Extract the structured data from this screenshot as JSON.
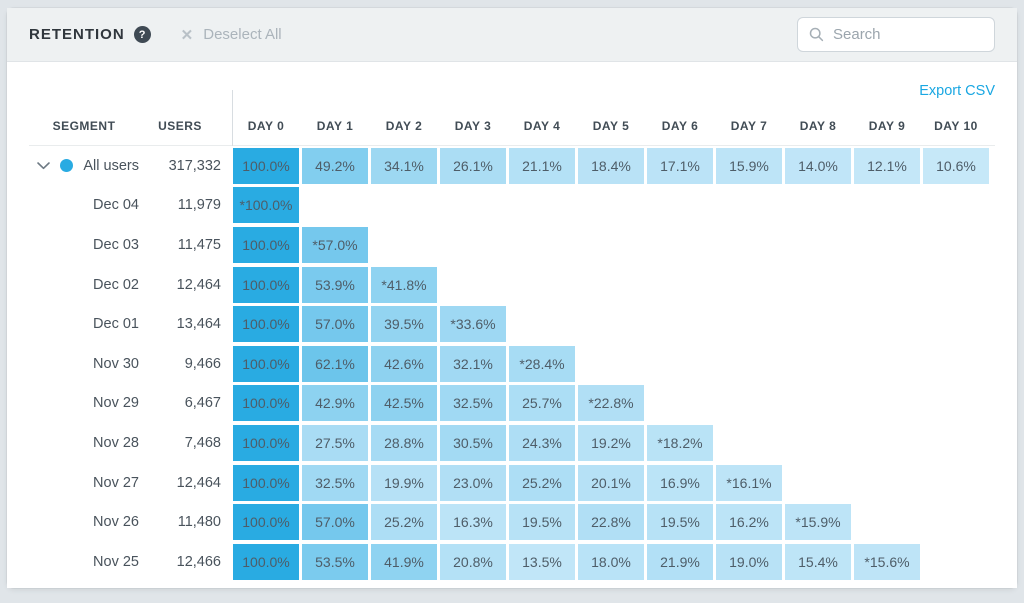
{
  "topbar": {
    "title": "RETENTION",
    "help_glyph": "?",
    "deselect_icon": "✕",
    "deselect_label": "Deselect All",
    "search_placeholder": "Search"
  },
  "toolbar": {
    "export_label": "Export CSV"
  },
  "table": {
    "headers": [
      "SEGMENT",
      "USERS",
      "DAY 0",
      "DAY 1",
      "DAY 2",
      "DAY 3",
      "DAY 4",
      "DAY 5",
      "DAY 6",
      "DAY 7",
      "DAY 8",
      "DAY 9",
      "DAY 10"
    ],
    "rows": [
      {
        "segment": "All users",
        "users": "317,332",
        "expandable": true,
        "has_dot": true,
        "values": [
          "100.0%",
          "49.2%",
          "34.1%",
          "26.1%",
          "21.1%",
          "18.4%",
          "17.1%",
          "15.9%",
          "14.0%",
          "12.1%",
          "10.6%"
        ]
      },
      {
        "segment": "Dec 04",
        "users": "11,979",
        "values": [
          "*100.0%"
        ]
      },
      {
        "segment": "Dec 03",
        "users": "11,475",
        "values": [
          "100.0%",
          "*57.0%"
        ]
      },
      {
        "segment": "Dec 02",
        "users": "12,464",
        "values": [
          "100.0%",
          "53.9%",
          "*41.8%"
        ]
      },
      {
        "segment": "Dec 01",
        "users": "13,464",
        "values": [
          "100.0%",
          "57.0%",
          "39.5%",
          "*33.6%"
        ]
      },
      {
        "segment": "Nov 30",
        "users": "9,466",
        "values": [
          "100.0%",
          "62.1%",
          "42.6%",
          "32.1%",
          "*28.4%"
        ]
      },
      {
        "segment": "Nov 29",
        "users": "6,467",
        "values": [
          "100.0%",
          "42.9%",
          "42.5%",
          "32.5%",
          "25.7%",
          "*22.8%"
        ]
      },
      {
        "segment": "Nov 28",
        "users": "7,468",
        "values": [
          "100.0%",
          "27.5%",
          "28.8%",
          "30.5%",
          "24.3%",
          "19.2%",
          "*18.2%"
        ]
      },
      {
        "segment": "Nov 27",
        "users": "12,464",
        "values": [
          "100.0%",
          "32.5%",
          "19.9%",
          "23.0%",
          "25.2%",
          "20.1%",
          "16.9%",
          "*16.1%"
        ]
      },
      {
        "segment": "Nov 26",
        "users": "11,480",
        "values": [
          "100.0%",
          "57.0%",
          "25.2%",
          "16.3%",
          "19.5%",
          "22.8%",
          "19.5%",
          "16.2%",
          "*15.9%"
        ]
      },
      {
        "segment": "Nov 25",
        "users": "12,466",
        "values": [
          "100.0%",
          "53.5%",
          "41.9%",
          "20.8%",
          "13.5%",
          "18.0%",
          "21.9%",
          "19.0%",
          "15.4%",
          "*15.6%"
        ]
      }
    ]
  },
  "colors": {
    "accent_blue": "#29abe2",
    "cell_low": "#d9effb",
    "link_blue": "#1aa7e2"
  }
}
